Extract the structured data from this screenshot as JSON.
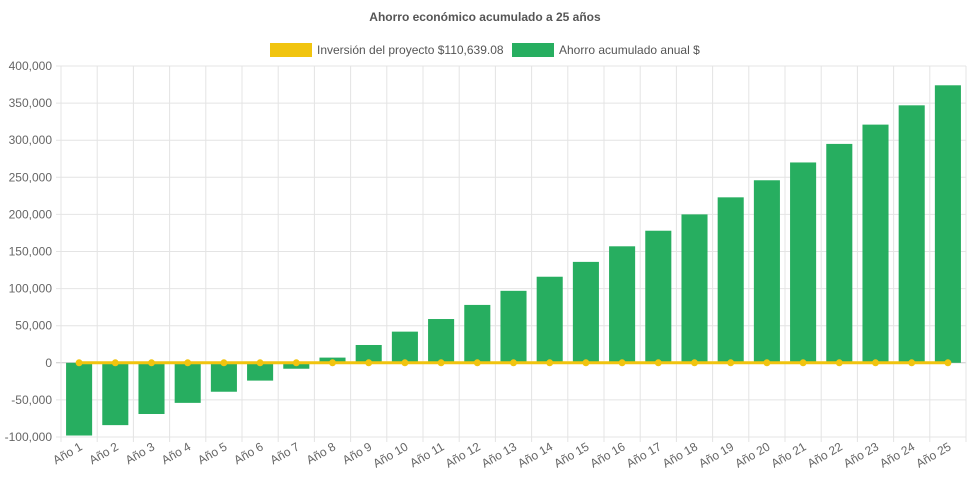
{
  "chart_data": {
    "type": "bar",
    "title": "Ahorro económico acumulado a 25 años",
    "legend": {
      "position": "top",
      "items": [
        {
          "label": "Inversión del proyecto $110,639.08",
          "color": "#f1c40f"
        },
        {
          "label": "Ahorro acumulado anual $",
          "color": "#27ae60"
        }
      ]
    },
    "categories": [
      "Año 1",
      "Año 2",
      "Año 3",
      "Año 4",
      "Año 5",
      "Año 6",
      "Año 7",
      "Año 8",
      "Año 9",
      "Año 10",
      "Año 11",
      "Año 12",
      "Año 13",
      "Año 14",
      "Año 15",
      "Año 16",
      "Año 17",
      "Año 18",
      "Año 19",
      "Año 20",
      "Año 21",
      "Año 22",
      "Año 23",
      "Año 24",
      "Año 25"
    ],
    "series": [
      {
        "name": "Inversión del proyecto $110,639.08",
        "type": "line",
        "color": "#f1c40f",
        "values": [
          0,
          0,
          0,
          0,
          0,
          0,
          0,
          0,
          0,
          0,
          0,
          0,
          0,
          0,
          0,
          0,
          0,
          0,
          0,
          0,
          0,
          0,
          0,
          0,
          0
        ]
      },
      {
        "name": "Ahorro acumulado anual $",
        "type": "bar",
        "color": "#27ae60",
        "values": [
          -98000,
          -84000,
          -69000,
          -54000,
          -39000,
          -24000,
          -8000,
          7000,
          24000,
          42000,
          59000,
          78000,
          97000,
          116000,
          136000,
          157000,
          178000,
          200000,
          223000,
          246000,
          270000,
          295000,
          321000,
          347000,
          374000
        ]
      }
    ],
    "yticks": [
      400000,
      350000,
      300000,
      250000,
      200000,
      150000,
      100000,
      50000,
      0,
      -50000,
      -100000
    ],
    "ytick_labels": [
      "400,000",
      "350,000",
      "300,000",
      "250,000",
      "200,000",
      "150,000",
      "100,000",
      "50,000",
      "0",
      "-50,000",
      "-100,000"
    ],
    "ylim": [
      -100000,
      400000
    ],
    "grid": true
  }
}
